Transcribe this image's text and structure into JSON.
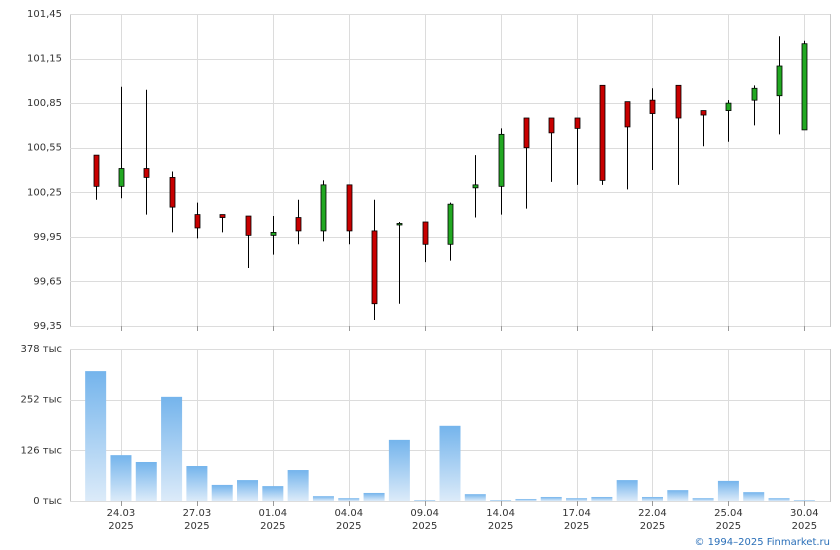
{
  "chart_data": [
    {
      "type": "candlestick",
      "up_color": "#22a822",
      "down_color": "#c80000",
      "open": [
        100.5,
        100.29,
        100.41,
        100.35,
        100.1,
        100.1,
        100.09,
        99.96,
        100.08,
        99.99,
        100.3,
        99.99,
        100.03,
        100.05,
        99.9,
        100.28,
        100.29,
        100.75,
        100.75,
        100.75,
        100.97,
        100.86,
        100.87,
        100.97,
        100.8,
        100.8,
        100.87,
        100.9,
        100.67
      ],
      "high": [
        100.5,
        100.96,
        100.94,
        100.39,
        100.18,
        100.1,
        100.09,
        100.09,
        100.2,
        100.33,
        100.3,
        100.2,
        100.05,
        100.05,
        100.18,
        100.5,
        100.68,
        100.75,
        100.75,
        100.75,
        100.97,
        100.86,
        100.95,
        100.97,
        100.8,
        100.87,
        100.97,
        101.3,
        101.27
      ],
      "low": [
        100.2,
        100.21,
        100.1,
        99.98,
        99.94,
        99.98,
        99.74,
        99.83,
        99.9,
        99.92,
        99.9,
        99.39,
        99.5,
        99.78,
        99.79,
        100.08,
        100.1,
        100.14,
        100.32,
        100.3,
        100.3,
        100.27,
        100.4,
        100.3,
        100.56,
        100.59,
        100.7,
        100.64,
        100.67
      ],
      "close": [
        100.29,
        100.41,
        100.35,
        100.15,
        100.01,
        100.08,
        99.96,
        99.98,
        99.99,
        100.3,
        99.99,
        99.5,
        100.04,
        99.9,
        100.17,
        100.3,
        100.64,
        100.55,
        100.65,
        100.68,
        100.33,
        100.69,
        100.78,
        100.75,
        100.77,
        100.85,
        100.95,
        101.1,
        101.25
      ],
      "ylim": [
        99.35,
        101.45
      ],
      "yticks": [
        {
          "value": 99.35,
          "label": "99,35"
        },
        {
          "value": 99.65,
          "label": "99,65"
        },
        {
          "value": 99.95,
          "label": "99,95"
        },
        {
          "value": 100.25,
          "label": "100,25"
        },
        {
          "value": 100.55,
          "label": "100,55"
        },
        {
          "value": 100.85,
          "label": "100,85"
        },
        {
          "value": 101.15,
          "label": "101,15"
        },
        {
          "value": 101.45,
          "label": "101,45"
        }
      ],
      "grid": true
    },
    {
      "type": "bar",
      "color_top": "#74b4ec",
      "color_bottom": "#dcebf9",
      "categories": [
        null,
        "24.03",
        null,
        null,
        "27.03",
        null,
        null,
        "01.04",
        null,
        null,
        "04.04",
        null,
        null,
        "09.04",
        null,
        null,
        "14.04",
        null,
        null,
        "17.04",
        null,
        null,
        "22.04",
        null,
        null,
        "25.04",
        null,
        null,
        "30.04"
      ],
      "category_years": [
        null,
        "2025",
        null,
        null,
        "2025",
        null,
        null,
        "2025",
        null,
        null,
        "2025",
        null,
        null,
        "2025",
        null,
        null,
        "2025",
        null,
        null,
        "2025",
        null,
        null,
        "2025",
        null,
        null,
        "2025",
        null,
        null,
        "2025"
      ],
      "values": [
        323,
        114,
        97,
        259,
        87,
        40,
        52,
        37,
        77,
        12,
        7,
        20,
        152,
        2,
        187,
        17,
        2,
        5,
        10,
        7,
        10,
        52,
        10,
        27,
        7,
        50,
        22,
        7,
        2
      ],
      "ylim": [
        0,
        378
      ],
      "yticks": [
        {
          "value": 0,
          "label": "0 тыс"
        },
        {
          "value": 126,
          "label": "126 тыс"
        },
        {
          "value": 252,
          "label": "252 тыс"
        },
        {
          "value": 378,
          "label": "378 тыс"
        }
      ],
      "grid": true
    }
  ],
  "footer": "© 1994–2025 Finmarket.ru"
}
